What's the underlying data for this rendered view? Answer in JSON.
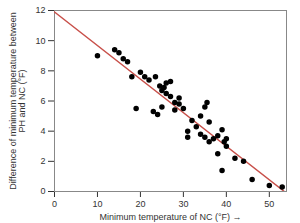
{
  "chart_data": {
    "type": "scatter",
    "x_label": "Minimum temperature of NC (°F)",
    "y_label": "Difference of minimum temperature between PH and NC (°F)",
    "x": [
      10,
      14,
      15,
      16,
      17,
      18,
      19,
      20,
      21,
      22,
      23,
      23.5,
      24,
      24.5,
      25,
      25,
      25.5,
      26,
      26,
      27,
      27,
      28,
      28,
      29,
      29,
      30,
      31,
      31,
      32,
      33,
      34,
      34,
      35,
      35,
      35.5,
      36,
      36,
      37,
      38,
      38,
      39,
      39,
      39.5,
      40,
      40,
      42,
      44,
      46,
      50,
      53
    ],
    "values": [
      9.0,
      9.4,
      9.2,
      8.8,
      8.6,
      7.6,
      5.5,
      7.9,
      7.6,
      7.4,
      5.3,
      7.6,
      5.1,
      7.0,
      6.7,
      5.6,
      6.9,
      7.2,
      6.5,
      7.3,
      6.3,
      5.9,
      5.4,
      6.2,
      5.8,
      5.5,
      4.0,
      3.6,
      4.7,
      4.3,
      3.8,
      5.0,
      5.6,
      3.6,
      5.9,
      3.3,
      4.6,
      3.5,
      3.7,
      2.5,
      1.4,
      4.1,
      3.3,
      3.5,
      3.0,
      2.2,
      2.0,
      0.8,
      0.4,
      0.3
    ],
    "color": "#000000",
    "marker": "circle",
    "fit_line": {
      "x": [
        0,
        53.5
      ],
      "values": [
        11.9,
        0
      ],
      "color": "#c8504a"
    },
    "xlim": [
      0,
      54
    ],
    "xticks": [
      0,
      10,
      20,
      30,
      40,
      50
    ],
    "ylim": [
      0,
      12
    ],
    "yticks": [
      0,
      2,
      4,
      6,
      8,
      10,
      12
    ],
    "grid": false
  }
}
